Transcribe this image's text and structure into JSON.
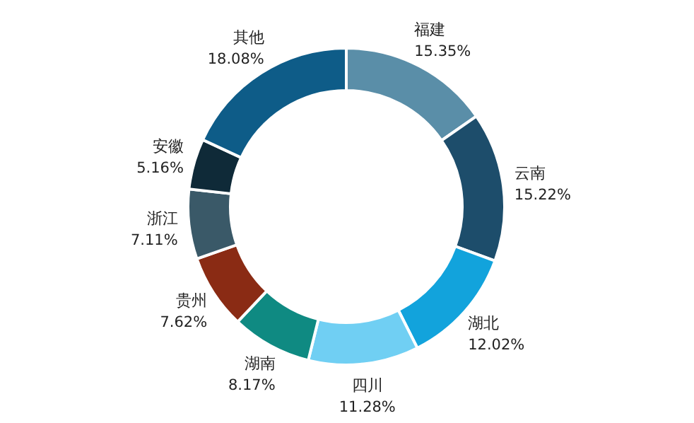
{
  "chart_data": {
    "type": "donut",
    "categories": [
      "福建",
      "云南",
      "湖北",
      "四川",
      "湖南",
      "贵州",
      "浙江",
      "安徽",
      "其他"
    ],
    "values": [
      15.35,
      15.22,
      12.02,
      11.28,
      8.17,
      7.62,
      7.11,
      5.16,
      18.08
    ],
    "colors": [
      "#5a8ea8",
      "#1d4d6b",
      "#12a3dc",
      "#70cff3",
      "#0f8a82",
      "#8a2b14",
      "#3a5968",
      "#0f2a38",
      "#0e5c88"
    ],
    "value_labels": [
      "15.35%",
      "15.22%",
      "12.02%",
      "11.28%",
      "8.17%",
      "7.62%",
      "7.11%",
      "5.16%",
      "18.08%"
    ]
  }
}
